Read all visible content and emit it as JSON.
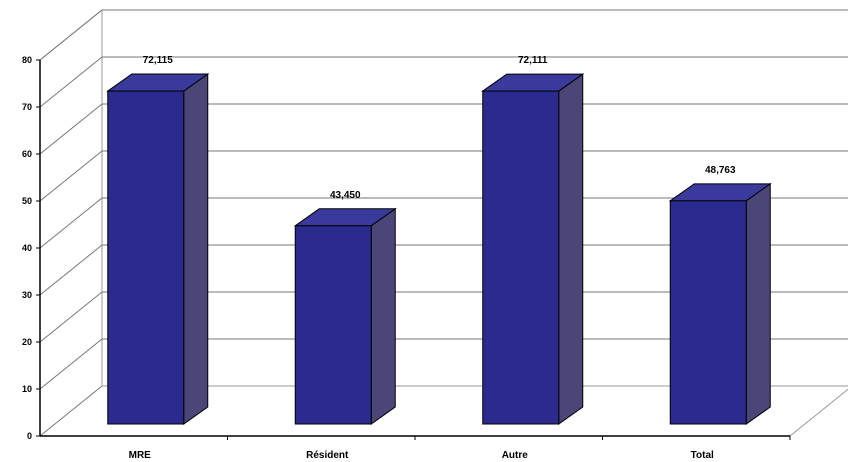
{
  "chart_data": {
    "type": "bar",
    "categories": [
      "MRE",
      "Résident",
      "Autre",
      "Total"
    ],
    "values": [
      72.115,
      43.45,
      72.111,
      48.763
    ],
    "data_labels": [
      "72,115",
      "43,450",
      "72,111",
      "48,763"
    ],
    "ylim": [
      0,
      80
    ],
    "yticks": [
      0,
      10,
      20,
      30,
      40,
      50,
      60,
      70,
      80
    ],
    "grid": true,
    "legend": "none",
    "style": "3d",
    "colors": {
      "bar_front": "#2b2b8f",
      "bar_side": "#4a4678",
      "bar_top": "#3a3a9c",
      "grid": "#777777",
      "axis": "#000000"
    }
  }
}
